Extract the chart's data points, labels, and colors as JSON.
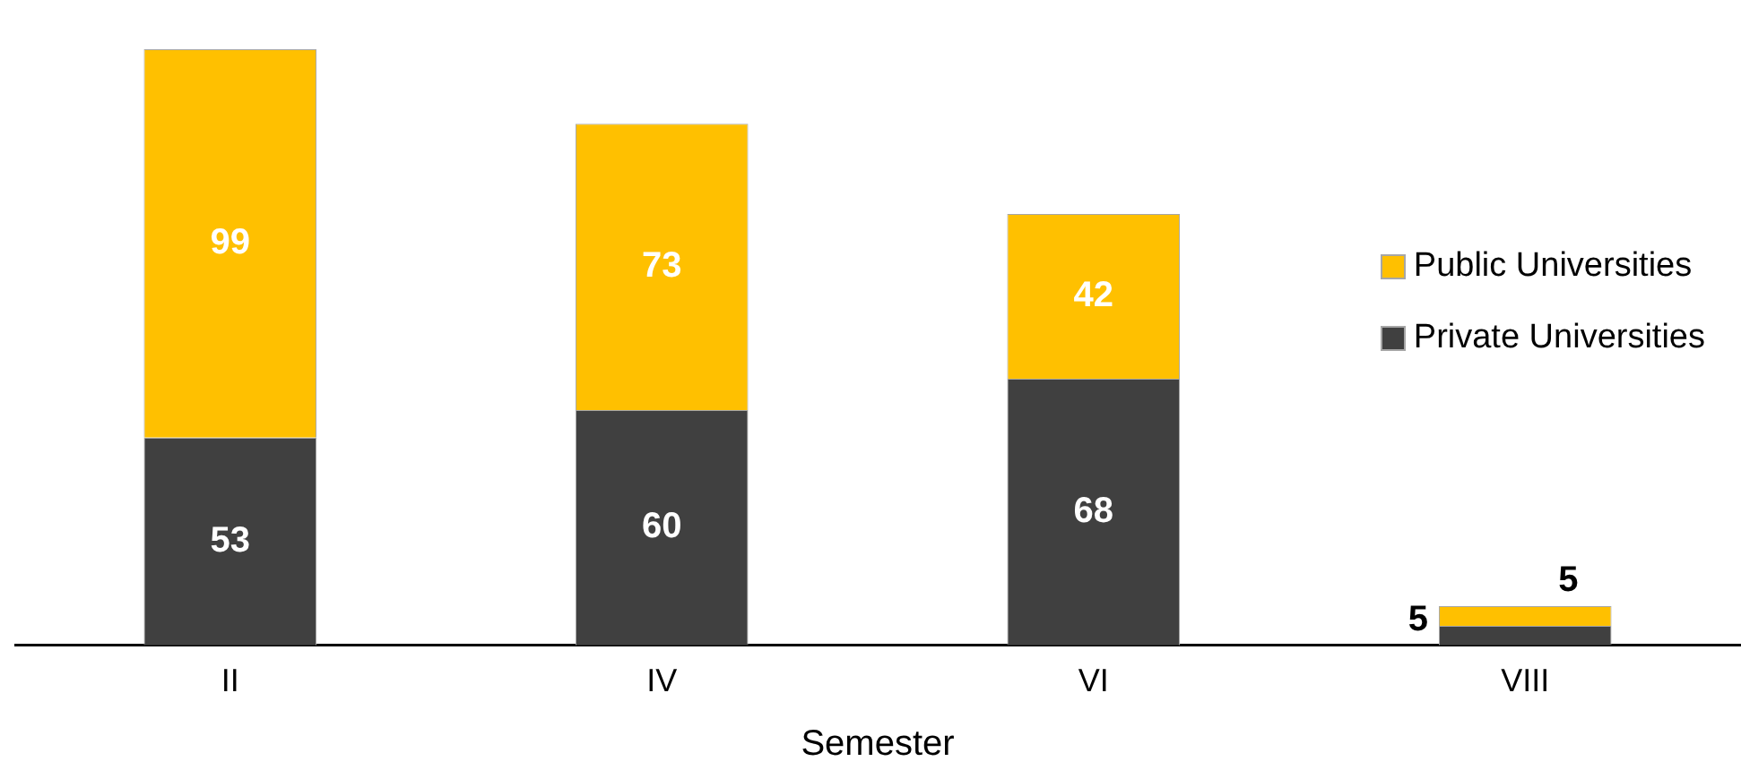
{
  "chart_data": {
    "type": "bar",
    "stacked": true,
    "xlabel": "Semester",
    "categories": [
      "II",
      "IV",
      "VI",
      "VIII"
    ],
    "series": [
      {
        "name": "Private Universities",
        "color": "#404040",
        "values": [
          53,
          60,
          68,
          5
        ]
      },
      {
        "name": "Public Universities",
        "color": "#ffc000",
        "values": [
          99,
          73,
          42,
          5
        ]
      }
    ],
    "data_labels": true,
    "legend": "right",
    "grid": false
  }
}
